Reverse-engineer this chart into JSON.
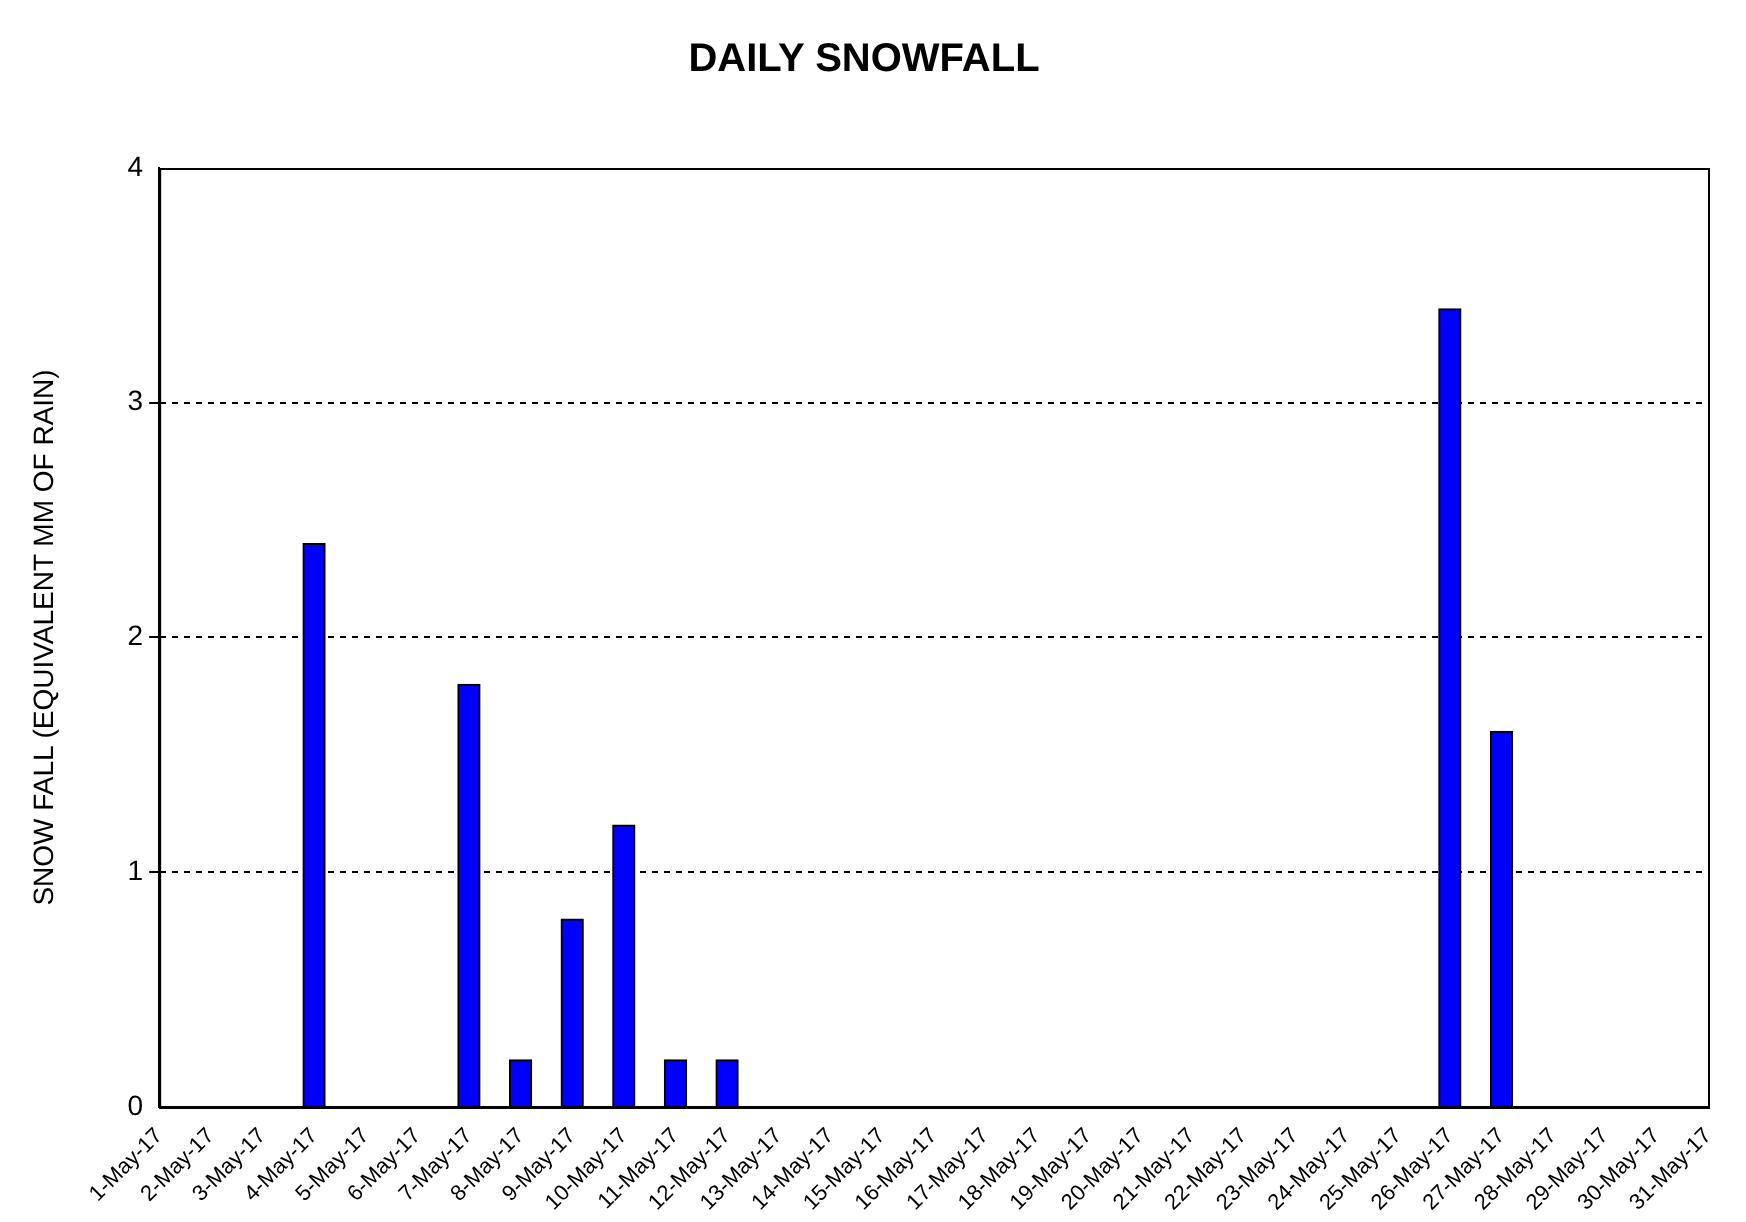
{
  "chart_data": {
    "type": "bar",
    "title": "DAILY SNOWFALL",
    "ylabel": "SNOW FALL (EQUIVALENT MM OF RAIN)",
    "categories": [
      "1-May-17",
      "2-May-17",
      "3-May-17",
      "4-May-17",
      "5-May-17",
      "6-May-17",
      "7-May-17",
      "8-May-17",
      "9-May-17",
      "10-May-17",
      "11-May-17",
      "12-May-17",
      "13-May-17",
      "14-May-17",
      "15-May-17",
      "16-May-17",
      "17-May-17",
      "18-May-17",
      "19-May-17",
      "20-May-17",
      "21-May-17",
      "22-May-17",
      "23-May-17",
      "24-May-17",
      "25-May-17",
      "26-May-17",
      "27-May-17",
      "28-May-17",
      "29-May-17",
      "30-May-17",
      "31-May-17"
    ],
    "values": [
      0,
      0,
      0,
      2.4,
      0,
      0,
      1.8,
      0.2,
      0.8,
      1.2,
      0.2,
      0.2,
      0,
      0,
      0,
      0,
      0,
      0,
      0,
      0,
      0,
      0,
      0,
      0,
      0,
      3.4,
      1.6,
      0,
      0,
      0,
      0
    ],
    "color": "#0000ff",
    "ylim": [
      0,
      4
    ],
    "yticks": [
      0,
      1,
      2,
      3,
      4
    ],
    "grid": "y",
    "legend": false
  }
}
